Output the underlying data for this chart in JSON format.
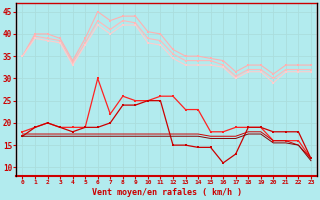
{
  "background_color": "#b2ebee",
  "grid_color": "#c8e8e8",
  "xlabel": "Vent moyen/en rafales ( km/h )",
  "ylabel_ticks": [
    10,
    15,
    20,
    25,
    30,
    35,
    40,
    45
  ],
  "x_labels": [
    "0",
    "1",
    "2",
    "3",
    "4",
    "5",
    "6",
    "7",
    "8",
    "9",
    "10",
    "11",
    "12",
    "13",
    "14",
    "15",
    "16",
    "17",
    "18",
    "19",
    "20",
    "21",
    "22",
    "23"
  ],
  "series": [
    {
      "name": "rafale_line1",
      "color": "#ffb0b0",
      "linewidth": 0.8,
      "marker": "s",
      "markersize": 1.8,
      "data": [
        35,
        40,
        40,
        39,
        34,
        39,
        45,
        43,
        44,
        44,
        40.5,
        40,
        36.5,
        35,
        35,
        34.5,
        34,
        31.5,
        33,
        33,
        31,
        33,
        33,
        33
      ]
    },
    {
      "name": "rafale_line2",
      "color": "#ffb8b8",
      "linewidth": 0.8,
      "marker": "s",
      "markersize": 1.8,
      "data": [
        35,
        39.5,
        39,
        38.5,
        33.5,
        38,
        43,
        41,
        43,
        42.5,
        39,
        38.5,
        35.5,
        34,
        34,
        34,
        33,
        30.5,
        32,
        32,
        30,
        32,
        32,
        32
      ]
    },
    {
      "name": "rafale_line3",
      "color": "#ffcccc",
      "linewidth": 0.8,
      "marker": "s",
      "markersize": 1.8,
      "data": [
        35,
        39,
        38.5,
        38,
        33,
        37.5,
        42,
        40,
        42,
        42,
        38,
        37.5,
        34.5,
        33,
        33,
        33,
        32.5,
        30,
        31.5,
        31.5,
        29,
        31.5,
        31.5,
        31.5
      ]
    },
    {
      "name": "vent_moyen_spike",
      "color": "#ff2222",
      "linewidth": 0.9,
      "marker": "s",
      "markersize": 1.8,
      "data": [
        18,
        19,
        20,
        19,
        19,
        19,
        30,
        22,
        26,
        25,
        25,
        26,
        26,
        23,
        23,
        18,
        18,
        19,
        19,
        19,
        16,
        16,
        16,
        12
      ]
    },
    {
      "name": "vent_moyen_mid",
      "color": "#cc0000",
      "linewidth": 0.9,
      "marker": "s",
      "markersize": 1.8,
      "data": [
        17,
        19,
        20,
        19,
        18,
        19,
        19,
        20,
        24,
        24,
        25,
        25,
        15,
        15,
        14.5,
        14.5,
        11,
        13,
        19,
        19,
        18,
        18,
        18,
        12
      ]
    },
    {
      "name": "vent_moyen_flat1",
      "color": "#cc0000",
      "linewidth": 0.7,
      "marker": null,
      "markersize": 0,
      "data": [
        17.5,
        17.5,
        17.5,
        17.5,
        17.5,
        17.5,
        17.5,
        17.5,
        17.5,
        17.5,
        17.5,
        17.5,
        17.5,
        17.5,
        17.5,
        17,
        17,
        17,
        18,
        18,
        16,
        16,
        15,
        12
      ]
    },
    {
      "name": "vent_moyen_flat2",
      "color": "#880000",
      "linewidth": 0.7,
      "marker": null,
      "markersize": 0,
      "data": [
        17,
        17,
        17,
        17,
        17,
        17,
        17,
        17,
        17,
        17,
        17,
        17,
        17,
        17,
        17,
        16.5,
        16.5,
        16.5,
        17.5,
        17.5,
        15.5,
        15.5,
        15,
        11.5
      ]
    }
  ]
}
